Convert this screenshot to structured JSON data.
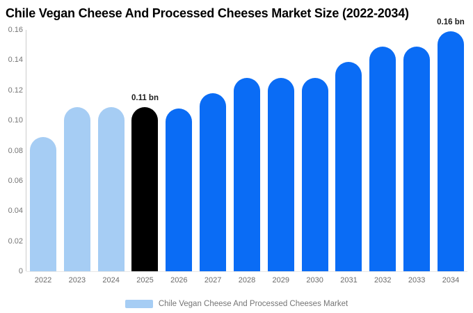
{
  "header": {
    "title": "Chile Vegan Cheese And Processed Cheeses Market Size (2022-2034)"
  },
  "chart_data": {
    "type": "bar",
    "title": "Chile Vegan Cheese And Processed Cheeses Market Size (2022-2034)",
    "categories": [
      "2022",
      "2023",
      "2024",
      "2025",
      "2026",
      "2027",
      "2028",
      "2029",
      "2030",
      "2031",
      "2032",
      "2033",
      "2034"
    ],
    "values": [
      0.089,
      0.109,
      0.109,
      0.109,
      0.108,
      0.118,
      0.128,
      0.128,
      0.128,
      0.139,
      0.149,
      0.149,
      0.159
    ],
    "bar_colors": [
      "#a6cdf4",
      "#a6cdf4",
      "#a6cdf4",
      "#000000",
      "#0a6cf5",
      "#0a6cf5",
      "#0a6cf5",
      "#0a6cf5",
      "#0a6cf5",
      "#0a6cf5",
      "#0a6cf5",
      "#0a6cf5",
      "#0a6cf5"
    ],
    "annotations": [
      {
        "category": "2025",
        "text": "0.11 bn"
      },
      {
        "category": "2034",
        "text": "0.16 bn"
      }
    ],
    "xlabel": "",
    "ylabel": "",
    "ylim": [
      0,
      0.16
    ],
    "yticks": [
      "0.16",
      "0.14",
      "0.12",
      "0.10",
      "0.08",
      "0.06",
      "0.04",
      "0.02",
      "0"
    ],
    "grid": false,
    "legend": {
      "position": "bottom",
      "entries": [
        {
          "label": "Chile Vegan Cheese And Processed Cheeses Market",
          "color": "#a6cdf4"
        }
      ]
    }
  }
}
